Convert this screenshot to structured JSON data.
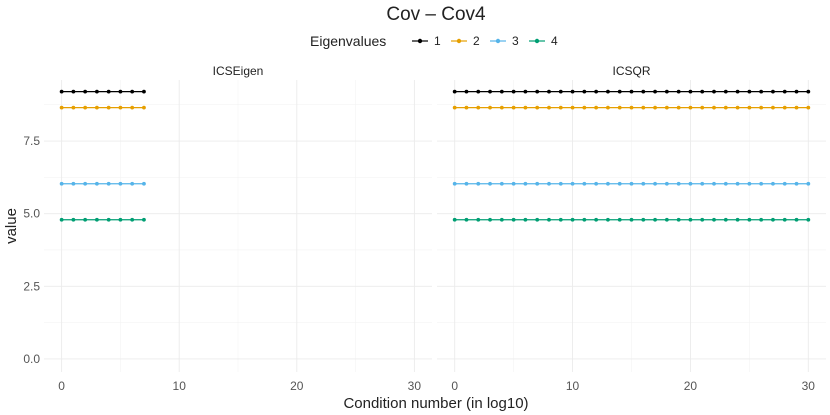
{
  "chart_data": {
    "type": "line",
    "title": "Cov – Cov4",
    "xlabel": "Condition number (in log10)",
    "ylabel": "value",
    "legend_title": "Eigenvalues",
    "legend_position": "top",
    "xlim": [
      -1.5,
      31.5
    ],
    "ylim": [
      -0.45,
      9.6
    ],
    "x_ticks": [
      0,
      10,
      20,
      30
    ],
    "y_ticks": [
      0.0,
      2.5,
      5.0,
      7.5
    ],
    "y_tick_labels": [
      "0.0",
      "2.5",
      "5.0",
      "7.5"
    ],
    "grid": true,
    "panels": [
      {
        "name": "ICSEigen",
        "x": [
          0,
          1,
          2,
          3,
          4,
          5,
          6,
          7
        ],
        "series": [
          {
            "name": "1",
            "values": [
              9.2,
              9.2,
              9.2,
              9.2,
              9.2,
              9.2,
              9.2,
              9.2
            ]
          },
          {
            "name": "2",
            "values": [
              8.65,
              8.65,
              8.65,
              8.65,
              8.65,
              8.65,
              8.65,
              8.65
            ]
          },
          {
            "name": "3",
            "values": [
              6.03,
              6.03,
              6.03,
              6.03,
              6.03,
              6.03,
              6.03,
              6.03
            ]
          },
          {
            "name": "4",
            "values": [
              4.79,
              4.79,
              4.79,
              4.79,
              4.79,
              4.79,
              4.79,
              4.79
            ]
          }
        ]
      },
      {
        "name": "ICSQR",
        "x": [
          0,
          1,
          2,
          3,
          4,
          5,
          6,
          7,
          8,
          9,
          10,
          11,
          12,
          13,
          14,
          15,
          16,
          17,
          18,
          19,
          20,
          21,
          22,
          23,
          24,
          25,
          26,
          27,
          28,
          29,
          30
        ],
        "series": [
          {
            "name": "1",
            "values": [
              9.2,
              9.2,
              9.2,
              9.2,
              9.2,
              9.2,
              9.2,
              9.2,
              9.2,
              9.2,
              9.2,
              9.2,
              9.2,
              9.2,
              9.2,
              9.2,
              9.2,
              9.2,
              9.2,
              9.2,
              9.2,
              9.2,
              9.2,
              9.2,
              9.2,
              9.2,
              9.2,
              9.2,
              9.2,
              9.2,
              9.2
            ]
          },
          {
            "name": "2",
            "values": [
              8.65,
              8.65,
              8.65,
              8.65,
              8.65,
              8.65,
              8.65,
              8.65,
              8.65,
              8.65,
              8.65,
              8.65,
              8.65,
              8.65,
              8.65,
              8.65,
              8.65,
              8.65,
              8.65,
              8.65,
              8.65,
              8.65,
              8.65,
              8.65,
              8.65,
              8.65,
              8.65,
              8.65,
              8.65,
              8.65,
              8.65
            ]
          },
          {
            "name": "3",
            "values": [
              6.03,
              6.03,
              6.03,
              6.03,
              6.03,
              6.03,
              6.03,
              6.03,
              6.03,
              6.03,
              6.03,
              6.03,
              6.03,
              6.03,
              6.03,
              6.03,
              6.03,
              6.03,
              6.03,
              6.03,
              6.03,
              6.03,
              6.03,
              6.03,
              6.03,
              6.03,
              6.03,
              6.03,
              6.03,
              6.03,
              6.03
            ]
          },
          {
            "name": "4",
            "values": [
              4.79,
              4.79,
              4.79,
              4.79,
              4.79,
              4.79,
              4.79,
              4.79,
              4.79,
              4.79,
              4.79,
              4.79,
              4.79,
              4.79,
              4.79,
              4.79,
              4.79,
              4.79,
              4.79,
              4.79,
              4.79,
              4.79,
              4.79,
              4.79,
              4.79,
              4.79,
              4.79,
              4.79,
              4.79,
              4.79,
              4.79
            ]
          }
        ]
      }
    ],
    "series_colors": {
      "1": "#000000",
      "2": "#E69F00",
      "3": "#56B4E9",
      "4": "#009E73"
    }
  }
}
